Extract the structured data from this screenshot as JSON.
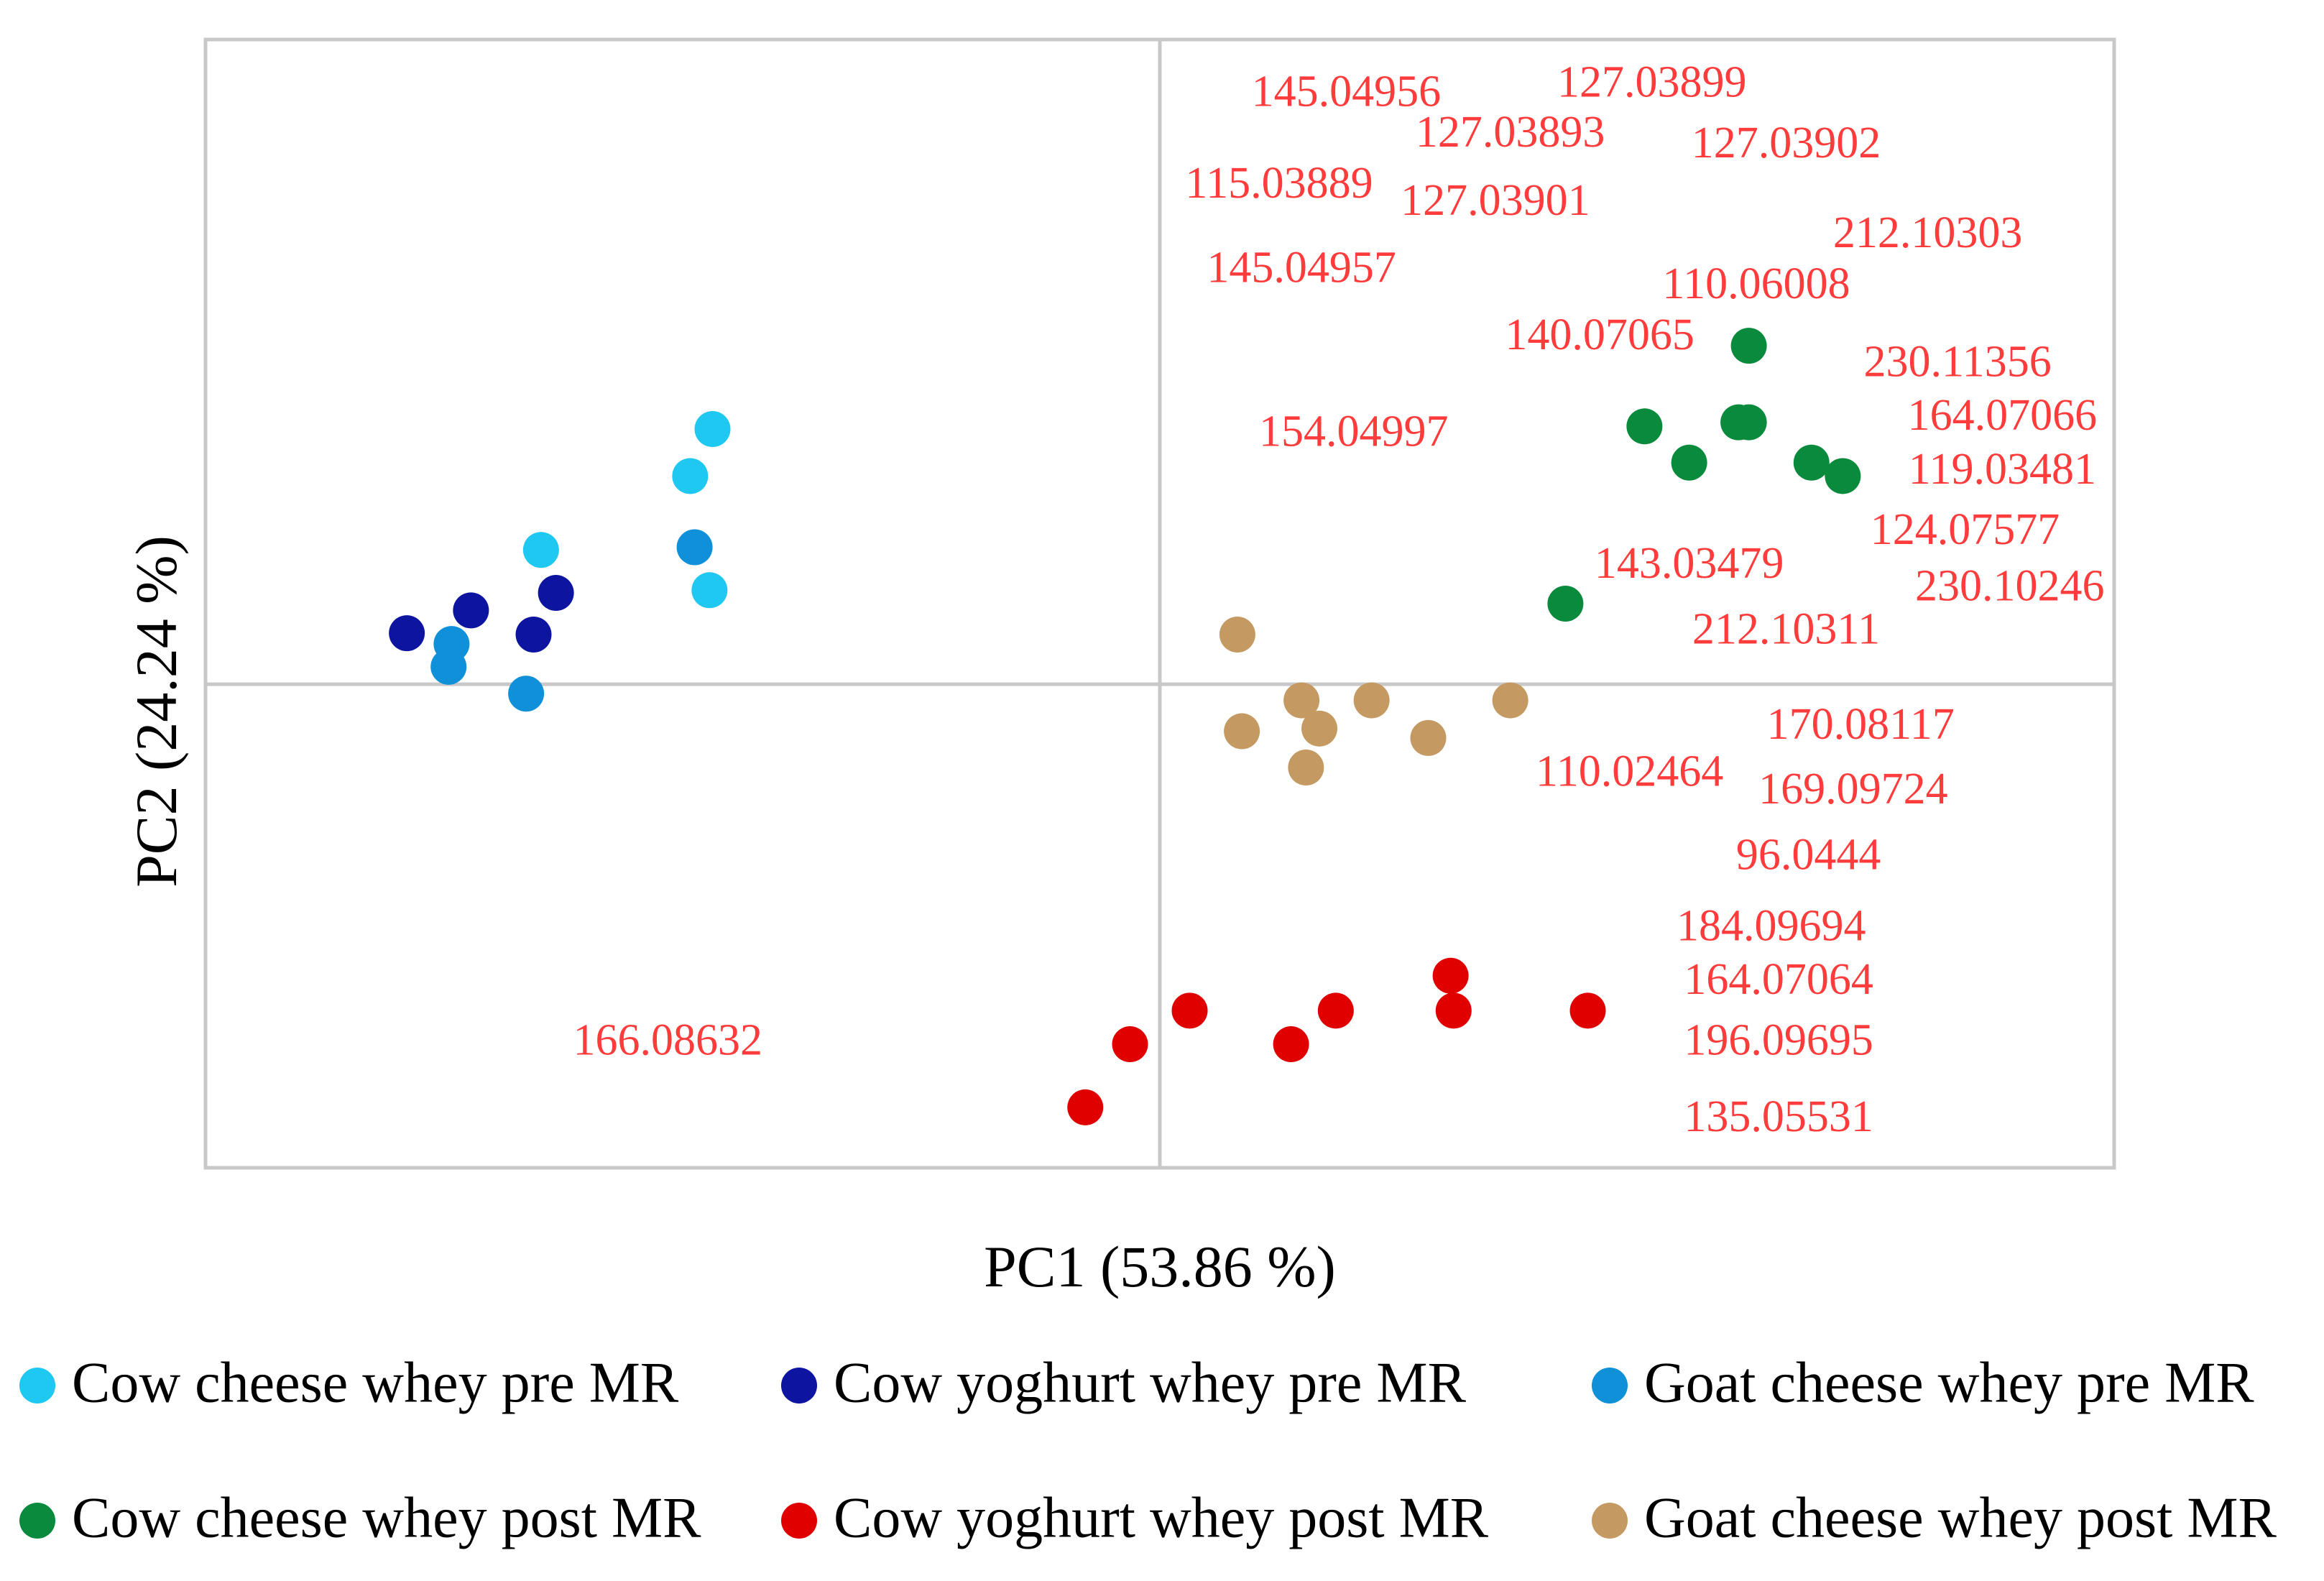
{
  "chart_data": {
    "type": "scatter",
    "title": "",
    "xlabel": "PC1 (53.86 %)",
    "ylabel": "PC2 (24.24 %)",
    "xlim": [
      -6.4,
      6.4
    ],
    "ylim": [
      -3.6,
      4.8
    ],
    "grid": false,
    "zero_lines": true,
    "legend_position": "bottom",
    "series": [
      {
        "name": "Cow cheese whey pre MR",
        "color": "#1ec8f0",
        "points": [
          [
            -3.0,
            1.9
          ],
          [
            -3.15,
            1.55
          ],
          [
            -4.15,
            1.0
          ],
          [
            -3.02,
            0.7
          ]
        ]
      },
      {
        "name": "Cow yoghurt whey pre MR",
        "color": "#0c14a0",
        "points": [
          [
            -5.05,
            0.38
          ],
          [
            -4.62,
            0.55
          ],
          [
            -4.05,
            0.68
          ],
          [
            -4.2,
            0.37
          ]
        ]
      },
      {
        "name": "Goat cheese whey pre MR",
        "color": "#1090d8",
        "points": [
          [
            -3.12,
            1.02
          ],
          [
            -4.75,
            0.3
          ],
          [
            -4.77,
            0.13
          ],
          [
            -4.25,
            -0.07
          ]
        ]
      },
      {
        "name": "Cow cheese whey post MR",
        "color": "#0a8a3c",
        "points": [
          [
            3.95,
            2.52
          ],
          [
            3.25,
            1.92
          ],
          [
            3.55,
            1.65
          ],
          [
            3.88,
            1.95
          ],
          [
            3.95,
            1.95
          ],
          [
            4.37,
            1.65
          ],
          [
            4.58,
            1.55
          ],
          [
            2.72,
            0.6
          ]
        ]
      },
      {
        "name": "Cow yoghurt whey post MR",
        "color": "#e00000",
        "points": [
          [
            -0.5,
            -3.15
          ],
          [
            -0.2,
            -2.68
          ],
          [
            0.2,
            -2.43
          ],
          [
            0.88,
            -2.68
          ],
          [
            1.18,
            -2.43
          ],
          [
            1.95,
            -2.17
          ],
          [
            1.97,
            -2.43
          ],
          [
            2.87,
            -2.43
          ]
        ]
      },
      {
        "name": "Goat cheese whey post MR",
        "color": "#c49a62",
        "points": [
          [
            0.52,
            0.37
          ],
          [
            0.95,
            -0.12
          ],
          [
            1.42,
            -0.12
          ],
          [
            2.35,
            -0.12
          ],
          [
            0.55,
            -0.35
          ],
          [
            1.07,
            -0.33
          ],
          [
            1.8,
            -0.4
          ],
          [
            0.98,
            -0.62
          ]
        ]
      }
    ],
    "annotations": [
      {
        "text": "145.04956",
        "x": 1.25,
        "y": 4.38
      },
      {
        "text": "127.03899",
        "x": 3.3,
        "y": 4.45
      },
      {
        "text": "127.03893",
        "x": 2.35,
        "y": 4.08
      },
      {
        "text": "127.03902",
        "x": 4.2,
        "y": 4.0
      },
      {
        "text": "115.03889",
        "x": 0.8,
        "y": 3.7
      },
      {
        "text": "127.03901",
        "x": 2.25,
        "y": 3.57
      },
      {
        "text": "145.04957",
        "x": 0.95,
        "y": 3.07
      },
      {
        "text": "212.10303",
        "x": 5.15,
        "y": 3.33
      },
      {
        "text": "110.06008",
        "x": 4.0,
        "y": 2.95
      },
      {
        "text": "140.07065",
        "x": 2.95,
        "y": 2.57
      },
      {
        "text": "230.11356",
        "x": 5.35,
        "y": 2.37
      },
      {
        "text": "154.04997",
        "x": 1.3,
        "y": 1.85
      },
      {
        "text": "164.07066",
        "x": 5.65,
        "y": 1.97
      },
      {
        "text": "119.03481",
        "x": 5.65,
        "y": 1.57
      },
      {
        "text": "124.07577",
        "x": 5.4,
        "y": 1.12
      },
      {
        "text": "143.03479",
        "x": 3.55,
        "y": 0.87
      },
      {
        "text": "230.10246",
        "x": 5.7,
        "y": 0.7
      },
      {
        "text": "212.10311",
        "x": 4.2,
        "y": 0.38
      },
      {
        "text": "170.08117",
        "x": 4.7,
        "y": -0.33
      },
      {
        "text": "110.02464",
        "x": 3.15,
        "y": -0.68
      },
      {
        "text": "169.09724",
        "x": 4.65,
        "y": -0.81
      },
      {
        "text": "96.0444",
        "x": 4.35,
        "y": -1.3
      },
      {
        "text": "184.09694",
        "x": 4.1,
        "y": -1.83
      },
      {
        "text": "164.07064",
        "x": 4.15,
        "y": -2.23
      },
      {
        "text": "166.08632",
        "x": -3.3,
        "y": -2.68
      },
      {
        "text": "196.09695",
        "x": 4.15,
        "y": -2.68
      },
      {
        "text": "135.05531",
        "x": 4.15,
        "y": -3.25
      }
    ]
  }
}
